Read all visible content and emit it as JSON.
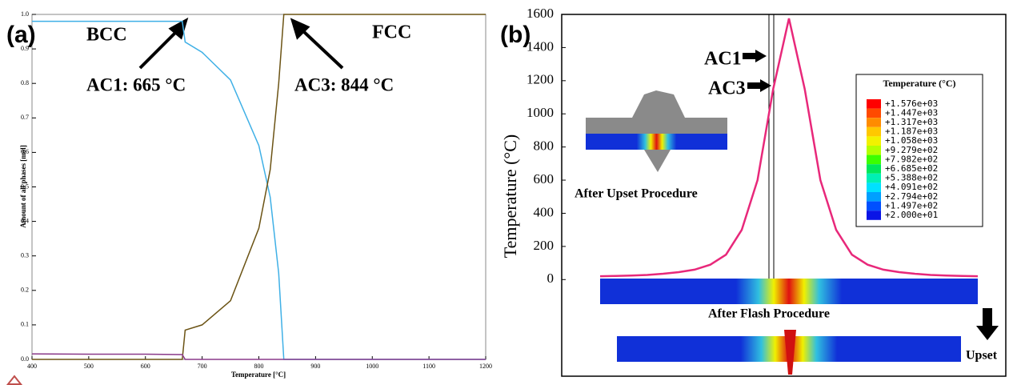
{
  "chart_data": [
    {
      "type": "line",
      "panel_label": "(a)",
      "x_label": "Temperature [°C]",
      "y_label": "Amount of all phases [mol]",
      "x": [
        400,
        500,
        600,
        665,
        670,
        700,
        750,
        800,
        820,
        835,
        844,
        900,
        1000,
        1100,
        1200
      ],
      "series": [
        {
          "name": "BCC",
          "color": "#3fb0e6",
          "values": [
            0.98,
            0.98,
            0.98,
            0.98,
            0.92,
            0.89,
            0.81,
            0.62,
            0.47,
            0.25,
            0,
            0,
            0,
            0,
            0
          ]
        },
        {
          "name": "FCC",
          "color": "#6b5314",
          "values": [
            0,
            0,
            0,
            0,
            0.085,
            0.1,
            0.17,
            0.38,
            0.55,
            0.8,
            1,
            1,
            1,
            1,
            1
          ]
        },
        {
          "color": "#8a3a8a",
          "values": [
            0.016,
            0.015,
            0.015,
            0.014,
            0,
            0,
            0,
            0,
            0,
            0,
            0,
            0,
            0,
            0,
            0
          ]
        }
      ],
      "annotations": [
        "AC1: 665 °C",
        "AC3: 844 °C"
      ],
      "xlim": [
        400,
        1200
      ],
      "xticks": [
        400,
        500,
        600,
        700,
        800,
        900,
        1000,
        1100,
        1200
      ],
      "ylim": [
        0,
        1
      ],
      "yticks": [
        {
          "value": 0,
          "label": "0.0"
        },
        0.1,
        0.2,
        0.3,
        0.4,
        0.5,
        0.6,
        0.7,
        0.8,
        0.9,
        {
          "value": 1,
          "label": "1.0"
        }
      ],
      "grid": false
    },
    {
      "type": "line",
      "panel_label": "(b)",
      "y_label": "Temperature (°C)",
      "series": [
        {
          "color": "#e8287a",
          "values": [
            20,
            22,
            24,
            28,
            35,
            45,
            60,
            90,
            150,
            300,
            600,
            1150,
            1576,
            1150,
            600,
            300,
            150,
            90,
            60,
            45,
            35,
            28,
            24,
            22,
            20
          ]
        }
      ],
      "annotations": [
        "AC1",
        "AC3",
        "After Upset Procedure",
        "After Flash Procedure",
        "Upset"
      ],
      "ylim": [
        -583,
        1600
      ],
      "yticks": [
        0,
        200,
        400,
        600,
        800,
        1000,
        1200,
        1400,
        1600
      ],
      "grid": false,
      "colorbar": {
        "title": "Temperature (°C)",
        "labels": [
          "+1.576e+03",
          "+1.447e+03",
          "+1.317e+03",
          "+1.187e+03",
          "+1.058e+03",
          "+9.279e+02",
          "+7.982e+02",
          "+6.685e+02",
          "+5.388e+02",
          "+4.091e+02",
          "+2.794e+02",
          "+1.497e+02",
          "+2.000e+01"
        ],
        "colors": [
          "#ff0000",
          "#ff4a00",
          "#ff8c00",
          "#ffc800",
          "#f2f200",
          "#b4ff00",
          "#3cff00",
          "#00e85a",
          "#00f0b4",
          "#00e1ff",
          "#00a0ff",
          "#0050ff",
          "#0a14e6"
        ]
      }
    }
  ]
}
